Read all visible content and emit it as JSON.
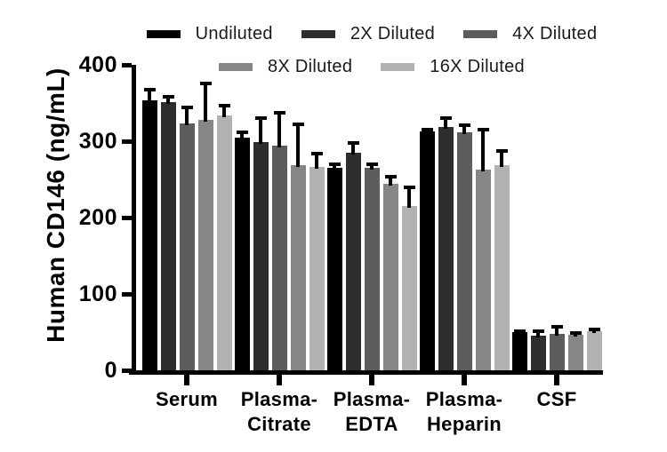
{
  "figure": {
    "background": "#ffffff",
    "axis_color": "#000000",
    "error_bar_color": "#000000"
  },
  "chart_data": {
    "type": "bar",
    "title": "",
    "xlabel": "",
    "ylabel": "Human CD146 (ng/mL)",
    "ylim": [
      0,
      400
    ],
    "yticks": [
      0,
      100,
      200,
      300,
      400
    ],
    "grid": false,
    "legend_position": "top",
    "legend_rows": [
      [
        "Undiluted",
        "2X Diluted",
        "4X Diluted"
      ],
      [
        "8X Diluted",
        "16X Diluted"
      ]
    ],
    "error_bars": "upper caps only",
    "categories": [
      "Serum",
      "Plasma-\nCitrate",
      "Plasma-\nEDTA",
      "Plasma-\nHeparin",
      "CSF"
    ],
    "series": [
      {
        "name": "Undiluted",
        "color": "#000000",
        "values": [
          354,
          305,
          265,
          313,
          50
        ],
        "errors": [
          16,
          9,
          7,
          5,
          3
        ]
      },
      {
        "name": "2X Diluted",
        "color": "#2e2e2e",
        "values": [
          351,
          299,
          285,
          319,
          45
        ],
        "errors": [
          9,
          33,
          15,
          13,
          8
        ]
      },
      {
        "name": "4X Diluted",
        "color": "#5d5d5d",
        "values": [
          323,
          294,
          265,
          312,
          48
        ],
        "errors": [
          24,
          45,
          7,
          11,
          11
        ]
      },
      {
        "name": "8X Diluted",
        "color": "#868686",
        "values": [
          328,
          269,
          244,
          263,
          46
        ],
        "errors": [
          50,
          55,
          12,
          55,
          5
        ]
      },
      {
        "name": "16X Diluted",
        "color": "#b2b2b2",
        "values": [
          334,
          266,
          215,
          269,
          51
        ],
        "errors": [
          15,
          20,
          27,
          21,
          5
        ]
      }
    ]
  }
}
